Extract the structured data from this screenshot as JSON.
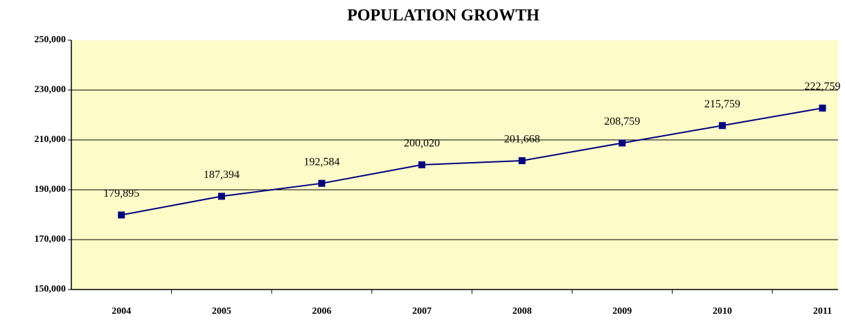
{
  "chart_data": {
    "type": "line",
    "title": "POPULATION GROWTH",
    "categories": [
      "2004",
      "2005",
      "2006",
      "2007",
      "2008",
      "2009",
      "2010",
      "2011"
    ],
    "series": [
      {
        "name": "Population",
        "color": "#000080",
        "values": [
          179895,
          187394,
          192584,
          200020,
          201668,
          208759,
          215759,
          222759
        ],
        "value_labels": [
          "179,895",
          "187,394",
          "192,584",
          "200,020",
          "201,668",
          "208,759",
          "215,759",
          "222,759"
        ]
      }
    ],
    "ylim": [
      150000,
      250000
    ],
    "yticks": [
      {
        "value": 150000,
        "label": "150,000"
      },
      {
        "value": 170000,
        "label": "170,000"
      },
      {
        "value": 190000,
        "label": "190,000"
      },
      {
        "value": 210000,
        "label": "210,000"
      },
      {
        "value": 230000,
        "label": "230,000"
      },
      {
        "value": 250000,
        "label": "250,000"
      }
    ],
    "grid": true,
    "background": "#fdfbc8"
  }
}
